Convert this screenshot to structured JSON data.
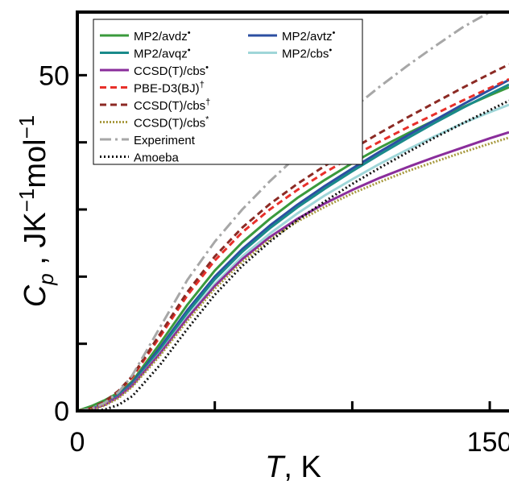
{
  "chart_data": {
    "type": "line",
    "xlabel": {
      "symbol": "T",
      "rest": ", K"
    },
    "ylabel": {
      "symbol": "C",
      "sub": "p",
      "rest": " , JK",
      "sup1": "−1",
      "mid": "mol",
      "sup2": "−1"
    },
    "xlim": [
      0,
      157
    ],
    "ylim": [
      0,
      59.4
    ],
    "xticks": [
      0,
      50,
      100,
      150
    ],
    "xtick_labels": [
      "0",
      "",
      "",
      "150"
    ],
    "yticks": [
      0,
      10,
      20,
      30,
      40,
      50
    ],
    "ytick_labels": [
      "0",
      "",
      "",
      "",
      "",
      "50"
    ],
    "grid": false,
    "legend_position": "top-left",
    "series": [
      {
        "name": "MP2/avdz",
        "mark": "•",
        "color": "#3a9a3c",
        "dash": "solid",
        "x": [
          0,
          5,
          10,
          15,
          20,
          30,
          40,
          50,
          60,
          70,
          80,
          90,
          100,
          110,
          120,
          130,
          140,
          150,
          157
        ],
        "y": [
          0,
          0.7,
          1.6,
          2.7,
          4.4,
          10.0,
          15.8,
          20.9,
          25.1,
          28.6,
          31.7,
          34.4,
          36.9,
          39.2,
          41.3,
          43.3,
          45.2,
          47.0,
          48.2
        ]
      },
      {
        "name": "MP2/avtz",
        "mark": "•",
        "color": "#2c4fa2",
        "dash": "solid",
        "x": [
          0,
          5,
          10,
          15,
          20,
          30,
          40,
          50,
          60,
          70,
          80,
          90,
          100,
          110,
          120,
          130,
          140,
          150,
          157
        ],
        "y": [
          0,
          0.3,
          1.1,
          2.4,
          4.2,
          9.4,
          15.0,
          20.0,
          24.1,
          27.6,
          30.7,
          33.5,
          36.1,
          38.6,
          41.0,
          43.3,
          45.6,
          47.8,
          49.3
        ]
      },
      {
        "name": "MP2/avqz",
        "mark": "•",
        "color": "#1a8a8a",
        "dash": "solid",
        "x": [
          0,
          5,
          10,
          15,
          20,
          30,
          40,
          50,
          60,
          70,
          80,
          90,
          100,
          110,
          120,
          130,
          140,
          150,
          157
        ],
        "y": [
          0,
          0.3,
          1.0,
          2.3,
          4.0,
          9.0,
          14.6,
          19.6,
          23.7,
          27.2,
          30.3,
          33.1,
          35.7,
          38.2,
          40.6,
          42.9,
          45.1,
          47.2,
          48.6
        ]
      },
      {
        "name": "MP2/cbs",
        "mark": "•",
        "color": "#9fd6d8",
        "dash": "solid",
        "x": [
          0,
          5,
          10,
          15,
          20,
          30,
          40,
          50,
          60,
          70,
          80,
          90,
          100,
          110,
          120,
          130,
          140,
          150,
          157
        ],
        "y": [
          0,
          0.2,
          0.9,
          2.1,
          3.8,
          8.6,
          14.0,
          18.9,
          23.0,
          26.4,
          29.4,
          32.1,
          34.5,
          36.8,
          38.9,
          40.9,
          42.8,
          44.5,
          45.6
        ]
      },
      {
        "name": "CCSD(T)/cbs",
        "mark": "•",
        "color": "#8a2d9b",
        "dash": "solid",
        "x": [
          0,
          5,
          10,
          15,
          20,
          30,
          40,
          50,
          60,
          70,
          80,
          90,
          100,
          110,
          120,
          130,
          140,
          150,
          157
        ],
        "y": [
          0,
          0.2,
          0.9,
          2.1,
          3.8,
          8.5,
          13.8,
          18.6,
          22.6,
          25.9,
          28.6,
          30.9,
          32.9,
          34.7,
          36.3,
          37.8,
          39.2,
          40.6,
          41.5
        ]
      },
      {
        "name": "PBE-D3(BJ)",
        "mark": "†",
        "color": "#e8302a",
        "dash": "8,5",
        "x": [
          0,
          5,
          10,
          15,
          20,
          30,
          40,
          50,
          60,
          70,
          80,
          90,
          100,
          110,
          120,
          130,
          140,
          150,
          157
        ],
        "y": [
          0,
          0.4,
          1.3,
          2.9,
          5.0,
          11.0,
          17.2,
          22.4,
          26.6,
          30.0,
          32.9,
          35.5,
          37.9,
          40.1,
          42.2,
          44.2,
          46.2,
          48.1,
          49.4
        ]
      },
      {
        "name": "CCSD(T)/cbs",
        "mark": "†",
        "color": "#8c2a24",
        "dash": "8,5",
        "x": [
          0,
          5,
          10,
          15,
          20,
          30,
          40,
          50,
          60,
          70,
          80,
          90,
          100,
          110,
          120,
          130,
          140,
          150,
          157
        ],
        "y": [
          0,
          0.4,
          1.4,
          3.0,
          5.2,
          11.4,
          17.7,
          23.0,
          27.3,
          30.8,
          33.8,
          36.5,
          39.0,
          41.4,
          43.7,
          45.9,
          48.1,
          50.2,
          51.6
        ]
      },
      {
        "name": "CCSD(T)/cbs",
        "mark": "*",
        "color": "#a89a40",
        "dash": "2,2",
        "x": [
          0,
          5,
          10,
          15,
          20,
          30,
          40,
          50,
          60,
          70,
          80,
          90,
          100,
          110,
          120,
          130,
          140,
          150,
          157
        ],
        "y": [
          0,
          0.2,
          0.8,
          1.9,
          3.6,
          8.2,
          13.4,
          18.2,
          22.2,
          25.5,
          28.2,
          30.4,
          32.4,
          34.1,
          35.7,
          37.1,
          38.5,
          39.8,
          40.7
        ]
      },
      {
        "name": "Experiment",
        "mark": "",
        "color": "#a7a7a7",
        "dash": "14,5,3,5",
        "x": [
          0,
          5,
          10,
          15,
          20,
          30,
          40,
          50,
          60,
          70,
          80,
          90,
          100,
          110,
          120,
          130,
          140,
          150
        ],
        "y": [
          0,
          0.3,
          1.2,
          2.8,
          5.3,
          12.4,
          19.5,
          25.2,
          30.0,
          34.2,
          38.0,
          41.6,
          45.0,
          48.3,
          51.4,
          54.3,
          57.1,
          59.4
        ]
      },
      {
        "name": "Amoeba",
        "mark": "",
        "color": "#111111",
        "dash": "2,3",
        "x": [
          0,
          5,
          10,
          15,
          20,
          30,
          40,
          50,
          60,
          70,
          80,
          90,
          100,
          110,
          120,
          130,
          140,
          150,
          157
        ],
        "y": [
          0,
          0,
          0.2,
          0.9,
          2.2,
          6.8,
          12.2,
          17.3,
          21.6,
          25.2,
          28.4,
          31.2,
          33.8,
          36.2,
          38.5,
          40.7,
          42.8,
          44.8,
          46.2
        ]
      }
    ]
  }
}
